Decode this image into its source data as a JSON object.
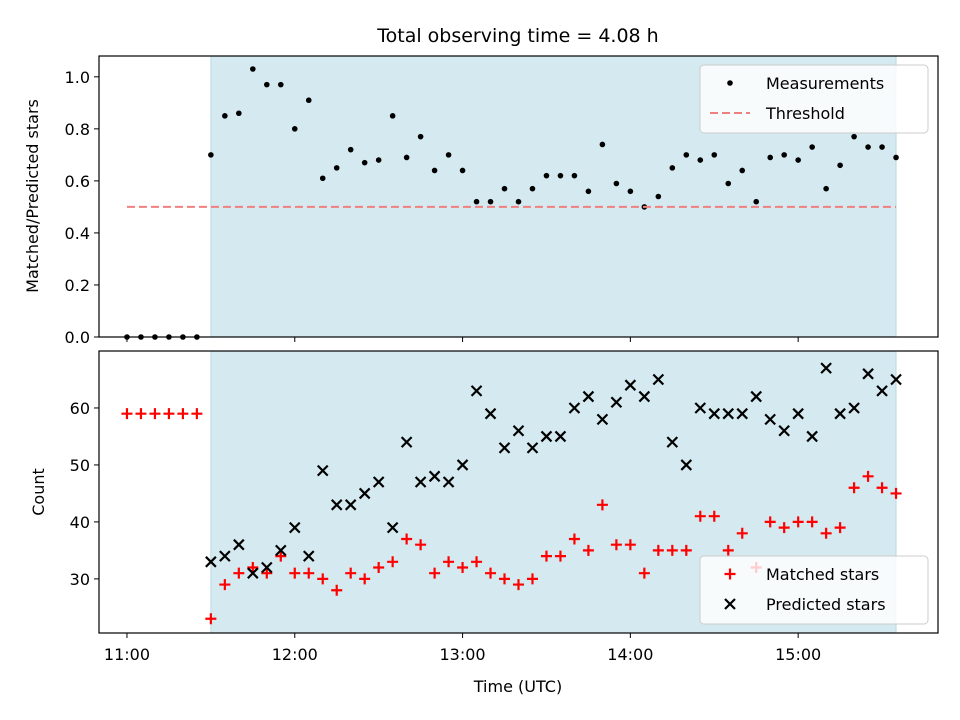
{
  "figure_title": "Total observing time = 4.08 h",
  "chart_data": [
    {
      "type": "scatter",
      "panel": "top",
      "ylabel": "Matched/Predicted stars",
      "xlim": [
        "10:50",
        "15:50"
      ],
      "ylim": [
        0,
        1.08
      ],
      "x_tick_labels": [
        "11:00",
        "12:00",
        "13:00",
        "14:00",
        "15:00"
      ],
      "y_ticks": [
        0.0,
        0.2,
        0.4,
        0.6,
        0.8,
        1.0
      ],
      "y_tick_labels": [
        "0.0",
        "0.2",
        "0.4",
        "0.6",
        "0.8",
        "1.0"
      ],
      "shaded_region": {
        "start": "11:30",
        "end": "15:35",
        "color": "#d4eaf0"
      },
      "legend": {
        "placement": "upper right",
        "entries": [
          "Measurements",
          "Threshold"
        ]
      },
      "series": [
        {
          "name": "Measurements",
          "marker": "dot",
          "color": "#000000",
          "points": [
            [
              "11:00",
              0.0
            ],
            [
              "11:05",
              0.0
            ],
            [
              "11:10",
              0.0
            ],
            [
              "11:15",
              0.0
            ],
            [
              "11:20",
              0.0
            ],
            [
              "11:25",
              0.0
            ],
            [
              "11:30",
              0.7
            ],
            [
              "11:35",
              0.85
            ],
            [
              "11:40",
              0.86
            ],
            [
              "11:45",
              1.03
            ],
            [
              "11:50",
              0.97
            ],
            [
              "11:55",
              0.97
            ],
            [
              "12:00",
              0.8
            ],
            [
              "12:05",
              0.91
            ],
            [
              "12:10",
              0.61
            ],
            [
              "12:15",
              0.65
            ],
            [
              "12:20",
              0.72
            ],
            [
              "12:25",
              0.67
            ],
            [
              "12:30",
              0.68
            ],
            [
              "12:35",
              0.85
            ],
            [
              "12:40",
              0.69
            ],
            [
              "12:45",
              0.77
            ],
            [
              "12:50",
              0.64
            ],
            [
              "12:55",
              0.7
            ],
            [
              "13:00",
              0.64
            ],
            [
              "13:05",
              0.52
            ],
            [
              "13:10",
              0.52
            ],
            [
              "13:15",
              0.57
            ],
            [
              "13:20",
              0.52
            ],
            [
              "13:25",
              0.57
            ],
            [
              "13:30",
              0.62
            ],
            [
              "13:35",
              0.62
            ],
            [
              "13:40",
              0.62
            ],
            [
              "13:45",
              0.56
            ],
            [
              "13:50",
              0.74
            ],
            [
              "13:55",
              0.59
            ],
            [
              "14:00",
              0.56
            ],
            [
              "14:05",
              0.5
            ],
            [
              "14:10",
              0.54
            ],
            [
              "14:15",
              0.65
            ],
            [
              "14:20",
              0.7
            ],
            [
              "14:25",
              0.68
            ],
            [
              "14:30",
              0.7
            ],
            [
              "14:35",
              0.59
            ],
            [
              "14:40",
              0.64
            ],
            [
              "14:45",
              0.52
            ],
            [
              "14:50",
              0.69
            ],
            [
              "14:55",
              0.7
            ],
            [
              "15:00",
              0.68
            ],
            [
              "15:05",
              0.73
            ],
            [
              "15:10",
              0.57
            ],
            [
              "15:15",
              0.66
            ],
            [
              "15:20",
              0.77
            ],
            [
              "15:25",
              0.73
            ],
            [
              "15:30",
              0.73
            ],
            [
              "15:35",
              0.69
            ]
          ]
        },
        {
          "name": "Threshold",
          "style": "dashed",
          "color": "#f08080",
          "points": [
            [
              "11:00",
              0.5
            ],
            [
              "15:35",
              0.5
            ]
          ]
        }
      ]
    },
    {
      "type": "scatter",
      "panel": "bottom",
      "xlabel": "Time (UTC)",
      "ylabel": "Count",
      "xlim": [
        "10:50",
        "15:50"
      ],
      "ylim": [
        20.5,
        70
      ],
      "x_tick_labels": [
        "11:00",
        "12:00",
        "13:00",
        "14:00",
        "15:00"
      ],
      "y_ticks": [
        30,
        40,
        50,
        60
      ],
      "y_tick_labels": [
        "30",
        "40",
        "50",
        "60"
      ],
      "shaded_region": {
        "start": "11:30",
        "end": "15:35",
        "color": "#d4eaf0"
      },
      "legend": {
        "placement": "lower right",
        "entries": [
          "Matched stars",
          "Predicted stars"
        ]
      },
      "series": [
        {
          "name": "Matched stars",
          "marker": "plus",
          "color": "#ff0000",
          "points": [
            [
              "11:00",
              59
            ],
            [
              "11:05",
              59
            ],
            [
              "11:10",
              59
            ],
            [
              "11:15",
              59
            ],
            [
              "11:20",
              59
            ],
            [
              "11:25",
              59
            ],
            [
              "11:30",
              23
            ],
            [
              "11:35",
              29
            ],
            [
              "11:40",
              31
            ],
            [
              "11:45",
              32
            ],
            [
              "11:50",
              31
            ],
            [
              "11:55",
              34
            ],
            [
              "12:00",
              31
            ],
            [
              "12:05",
              31
            ],
            [
              "12:10",
              30
            ],
            [
              "12:15",
              28
            ],
            [
              "12:20",
              31
            ],
            [
              "12:25",
              30
            ],
            [
              "12:30",
              32
            ],
            [
              "12:35",
              33
            ],
            [
              "12:40",
              37
            ],
            [
              "12:45",
              36
            ],
            [
              "12:50",
              31
            ],
            [
              "12:55",
              33
            ],
            [
              "13:00",
              32
            ],
            [
              "13:05",
              33
            ],
            [
              "13:10",
              31
            ],
            [
              "13:15",
              30
            ],
            [
              "13:20",
              29
            ],
            [
              "13:25",
              30
            ],
            [
              "13:30",
              34
            ],
            [
              "13:35",
              34
            ],
            [
              "13:40",
              37
            ],
            [
              "13:45",
              35
            ],
            [
              "13:50",
              43
            ],
            [
              "13:55",
              36
            ],
            [
              "14:00",
              36
            ],
            [
              "14:05",
              31
            ],
            [
              "14:10",
              35
            ],
            [
              "14:15",
              35
            ],
            [
              "14:20",
              35
            ],
            [
              "14:25",
              41
            ],
            [
              "14:30",
              41
            ],
            [
              "14:35",
              35
            ],
            [
              "14:40",
              38
            ],
            [
              "14:45",
              32
            ],
            [
              "14:50",
              40
            ],
            [
              "14:55",
              39
            ],
            [
              "15:00",
              40
            ],
            [
              "15:05",
              40
            ],
            [
              "15:10",
              38
            ],
            [
              "15:15",
              39
            ],
            [
              "15:20",
              46
            ],
            [
              "15:25",
              48
            ],
            [
              "15:30",
              46
            ],
            [
              "15:35",
              45
            ]
          ]
        },
        {
          "name": "Predicted stars",
          "marker": "x",
          "color": "#000000",
          "points": [
            [
              "11:30",
              33
            ],
            [
              "11:35",
              34
            ],
            [
              "11:40",
              36
            ],
            [
              "11:45",
              31
            ],
            [
              "11:50",
              32
            ],
            [
              "11:55",
              35
            ],
            [
              "12:00",
              39
            ],
            [
              "12:05",
              34
            ],
            [
              "12:10",
              49
            ],
            [
              "12:15",
              43
            ],
            [
              "12:20",
              43
            ],
            [
              "12:25",
              45
            ],
            [
              "12:30",
              47
            ],
            [
              "12:35",
              39
            ],
            [
              "12:40",
              54
            ],
            [
              "12:45",
              47
            ],
            [
              "12:50",
              48
            ],
            [
              "12:55",
              47
            ],
            [
              "13:00",
              50
            ],
            [
              "13:05",
              63
            ],
            [
              "13:10",
              59
            ],
            [
              "13:15",
              53
            ],
            [
              "13:20",
              56
            ],
            [
              "13:25",
              53
            ],
            [
              "13:30",
              55
            ],
            [
              "13:35",
              55
            ],
            [
              "13:40",
              60
            ],
            [
              "13:45",
              62
            ],
            [
              "13:50",
              58
            ],
            [
              "13:55",
              61
            ],
            [
              "14:00",
              64
            ],
            [
              "14:05",
              62
            ],
            [
              "14:10",
              65
            ],
            [
              "14:15",
              54
            ],
            [
              "14:20",
              50
            ],
            [
              "14:25",
              60
            ],
            [
              "14:30",
              59
            ],
            [
              "14:35",
              59
            ],
            [
              "14:40",
              59
            ],
            [
              "14:45",
              62
            ],
            [
              "14:50",
              58
            ],
            [
              "14:55",
              56
            ],
            [
              "15:00",
              59
            ],
            [
              "15:05",
              55
            ],
            [
              "15:10",
              67
            ],
            [
              "15:15",
              59
            ],
            [
              "15:20",
              60
            ],
            [
              "15:25",
              66
            ],
            [
              "15:30",
              63
            ],
            [
              "15:35",
              65
            ]
          ]
        }
      ]
    }
  ]
}
